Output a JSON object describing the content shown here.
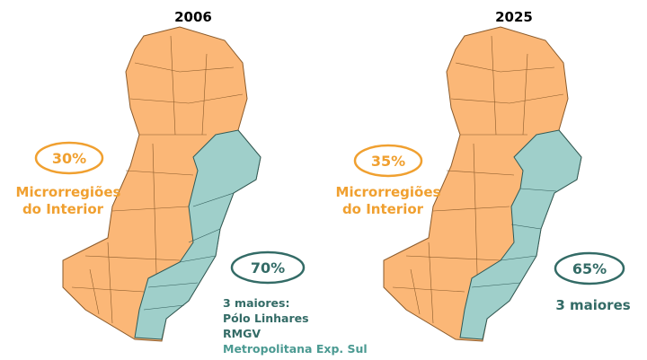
{
  "panels": [
    {
      "title": "2006",
      "interior": {
        "share": "30%",
        "label_lines": [
          "Microrregiões",
          "do Interior"
        ]
      },
      "coast": {
        "share": "70%",
        "label_lines": [
          "3 maiores:",
          "Pólo Linhares",
          "RMGV",
          "Metropolitana Exp. Sul"
        ]
      }
    },
    {
      "title": "2025",
      "interior": {
        "share": "35%",
        "label_lines": [
          "Microrregiões",
          "do Interior"
        ]
      },
      "coast": {
        "share": "65%",
        "label_lines": [
          "3 maiores"
        ]
      }
    }
  ]
}
